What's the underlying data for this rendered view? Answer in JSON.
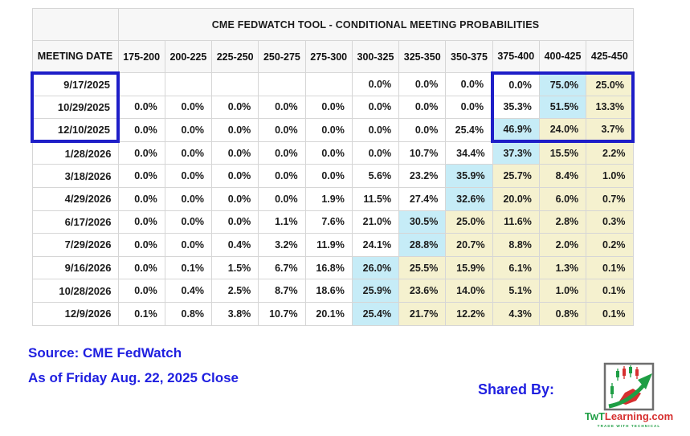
{
  "chart_data": {
    "type": "table",
    "title": "CME FEDWATCH TOOL - CONDITIONAL MEETING PROBABILITIES",
    "columns": [
      "MEETING DATE",
      "175-200",
      "200-225",
      "225-250",
      "250-275",
      "275-300",
      "300-325",
      "325-350",
      "350-375",
      "375-400",
      "400-425",
      "425-450"
    ],
    "rows": [
      [
        "9/17/2025",
        "",
        "",
        "",
        "",
        "",
        "0.0%",
        "0.0%",
        "0.0%",
        "0.0%",
        "75.0%",
        "25.0%"
      ],
      [
        "10/29/2025",
        "0.0%",
        "0.0%",
        "0.0%",
        "0.0%",
        "0.0%",
        "0.0%",
        "0.0%",
        "0.0%",
        "35.3%",
        "51.5%",
        "13.3%"
      ],
      [
        "12/10/2025",
        "0.0%",
        "0.0%",
        "0.0%",
        "0.0%",
        "0.0%",
        "0.0%",
        "0.0%",
        "25.4%",
        "46.9%",
        "24.0%",
        "3.7%"
      ],
      [
        "1/28/2026",
        "0.0%",
        "0.0%",
        "0.0%",
        "0.0%",
        "0.0%",
        "0.0%",
        "10.7%",
        "34.4%",
        "37.3%",
        "15.5%",
        "2.2%"
      ],
      [
        "3/18/2026",
        "0.0%",
        "0.0%",
        "0.0%",
        "0.0%",
        "0.0%",
        "5.6%",
        "23.2%",
        "35.9%",
        "25.7%",
        "8.4%",
        "1.0%"
      ],
      [
        "4/29/2026",
        "0.0%",
        "0.0%",
        "0.0%",
        "0.0%",
        "1.9%",
        "11.5%",
        "27.4%",
        "32.6%",
        "20.0%",
        "6.0%",
        "0.7%"
      ],
      [
        "6/17/2026",
        "0.0%",
        "0.0%",
        "0.0%",
        "1.1%",
        "7.6%",
        "21.0%",
        "30.5%",
        "25.0%",
        "11.6%",
        "2.8%",
        "0.3%"
      ],
      [
        "7/29/2026",
        "0.0%",
        "0.0%",
        "0.4%",
        "3.2%",
        "11.9%",
        "24.1%",
        "28.8%",
        "20.7%",
        "8.8%",
        "2.0%",
        "0.2%"
      ],
      [
        "9/16/2026",
        "0.0%",
        "0.1%",
        "1.5%",
        "6.7%",
        "16.8%",
        "26.0%",
        "25.5%",
        "15.9%",
        "6.1%",
        "1.3%",
        "0.1%"
      ],
      [
        "10/28/2026",
        "0.0%",
        "0.4%",
        "2.5%",
        "8.7%",
        "18.6%",
        "25.9%",
        "23.6%",
        "14.0%",
        "5.1%",
        "1.0%",
        "0.1%"
      ],
      [
        "12/9/2026",
        "0.1%",
        "0.8%",
        "3.8%",
        "10.7%",
        "20.1%",
        "25.4%",
        "21.7%",
        "12.2%",
        "4.3%",
        "0.8%",
        "0.1%"
      ]
    ],
    "highlight": {
      "max_cell_color": "#c6ecf7",
      "right_of_max_color": "#f5f1cf"
    },
    "selection": {
      "border_color": "#1e1ec8",
      "rows": [
        "9/17/2025",
        "10/29/2025",
        "12/10/2025"
      ],
      "rate_columns": [
        "375-400",
        "400-425",
        "425-450"
      ]
    }
  },
  "footer": {
    "source": "Source: CME FedWatch",
    "as_of": "As of Friday Aug. 22, 2025 Close",
    "shared_by": "Shared By:",
    "text_color": "#1f1fe0"
  },
  "logo": {
    "brand_green": "TwT",
    "brand_red": "Learning.com",
    "tagline": "TRADE WITH TECHNICAL",
    "green": "#1e9e44",
    "red": "#d62f2f"
  }
}
